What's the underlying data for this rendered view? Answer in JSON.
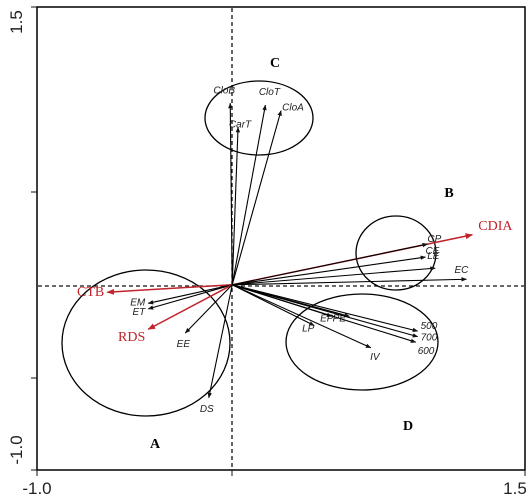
{
  "chart_data": {
    "type": "biplot",
    "xlim": [
      -1.0,
      1.5
    ],
    "ylim": [
      -1.0,
      1.5
    ],
    "axis_tick_labels": {
      "x_left": "-1.0",
      "x_right": "1.5",
      "y_bottom": "-1.0",
      "y_top": "1.5"
    },
    "origin": [
      0.0,
      0.0
    ],
    "vectors": [
      {
        "label": "CloB",
        "x": -0.01,
        "y": 0.98,
        "color": "#000000",
        "emphasis": false
      },
      {
        "label": "CloT",
        "x": 0.17,
        "y": 0.97,
        "color": "#000000",
        "emphasis": false
      },
      {
        "label": "CloA",
        "x": 0.25,
        "y": 0.94,
        "color": "#000000",
        "emphasis": false
      },
      {
        "label": "CarT",
        "x": 0.03,
        "y": 0.85,
        "color": "#000000",
        "emphasis": false
      },
      {
        "label": "CDIA",
        "x": 1.23,
        "y": 0.27,
        "color": "#c0232b",
        "emphasis": true
      },
      {
        "label": "CP",
        "x": 1.0,
        "y": 0.22,
        "color": "#000000",
        "emphasis": false
      },
      {
        "label": "CE",
        "x": 0.99,
        "y": 0.15,
        "color": "#000000",
        "emphasis": false
      },
      {
        "label": "LE",
        "x": 1.04,
        "y": 0.09,
        "color": "#000000",
        "emphasis": false
      },
      {
        "label": "EC",
        "x": 1.2,
        "y": 0.03,
        "color": "#000000",
        "emphasis": false
      },
      {
        "label": "CTB",
        "x": -0.64,
        "y": -0.04,
        "color": "#c0232b",
        "emphasis": true
      },
      {
        "label": "EM",
        "x": -0.43,
        "y": -0.1,
        "color": "#000000",
        "emphasis": false
      },
      {
        "label": "ET",
        "x": -0.43,
        "y": -0.13,
        "color": "#000000",
        "emphasis": false
      },
      {
        "label": "RDS",
        "x": -0.43,
        "y": -0.24,
        "color": "#c0232b",
        "emphasis": true
      },
      {
        "label": "EE",
        "x": -0.24,
        "y": -0.26,
        "color": "#000000",
        "emphasis": false
      },
      {
        "label": "DS",
        "x": -0.12,
        "y": -0.61,
        "color": "#000000",
        "emphasis": false
      },
      {
        "label": "LP",
        "x": 0.42,
        "y": -0.22,
        "color": "#000000",
        "emphasis": false
      },
      {
        "label": "EP",
        "x": 0.51,
        "y": -0.17,
        "color": "#000000",
        "emphasis": false
      },
      {
        "label": "PE",
        "x": 0.6,
        "y": -0.17,
        "color": "#000000",
        "emphasis": false
      },
      {
        "label": "IV",
        "x": 0.71,
        "y": -0.34,
        "color": "#000000",
        "emphasis": false
      },
      {
        "label": "500",
        "x": 0.95,
        "y": -0.25,
        "color": "#000000",
        "emphasis": false
      },
      {
        "label": "700",
        "x": 0.95,
        "y": -0.28,
        "color": "#000000",
        "emphasis": false
      },
      {
        "label": "600",
        "x": 0.94,
        "y": -0.31,
        "color": "#000000",
        "emphasis": false
      }
    ],
    "groups": [
      {
        "label": "A"
      },
      {
        "label": "B"
      },
      {
        "label": "C"
      },
      {
        "label": "D"
      }
    ],
    "reference_lines": "dashed lines at x = 0 and y = 0",
    "grid": false,
    "legend": "none"
  }
}
